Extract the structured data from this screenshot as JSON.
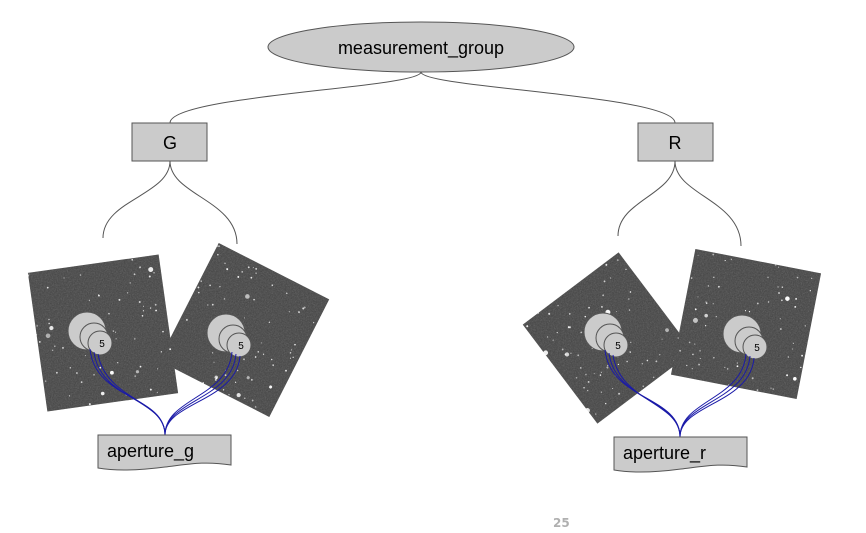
{
  "root": {
    "label": "measurement_group"
  },
  "groups": [
    {
      "label": "G",
      "aperture_label": "aperture_g",
      "circle_labels": [
        "5",
        "5"
      ]
    },
    {
      "label": "R",
      "aperture_label": "aperture_r",
      "circle_labels": [
        "5",
        "5"
      ]
    }
  ],
  "page_number": "25",
  "colors": {
    "node_fill": "#cbcbcb",
    "node_stroke": "#555555",
    "connector": "#555555",
    "aperture_link": "#1a1aa8",
    "image_background": "#3c3c3c"
  }
}
